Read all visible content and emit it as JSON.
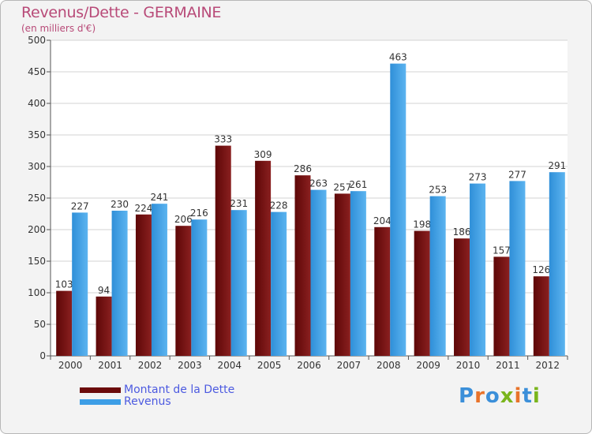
{
  "header": {
    "title": "Revenus/Dette - GERMAINE",
    "subtitle": "(en milliers d'€)"
  },
  "chart_data": {
    "type": "bar",
    "title": "Revenus/Dette - GERMAINE",
    "ylabel": "(en milliers d'€)",
    "xlabel": "",
    "ylim": [
      0,
      500
    ],
    "yticks": [
      0,
      50,
      100,
      150,
      200,
      250,
      300,
      350,
      400,
      450,
      500
    ],
    "grid": true,
    "legend_position": "bottom-left",
    "categories": [
      "2000",
      "2001",
      "2002",
      "2003",
      "2004",
      "2005",
      "2006",
      "2007",
      "2008",
      "2009",
      "2010",
      "2011",
      "2012"
    ],
    "series": [
      {
        "name": "Montant de la Dette",
        "color": "#7a0e0e",
        "values": [
          103,
          94,
          224,
          206,
          333,
          309,
          286,
          257,
          204,
          198,
          186,
          157,
          126
        ]
      },
      {
        "name": "Revenus",
        "color": "#3d9ee6",
        "values": [
          227,
          230,
          241,
          216,
          231,
          228,
          263,
          261,
          463,
          253,
          273,
          277,
          291
        ]
      }
    ]
  },
  "legend": {
    "items": [
      {
        "label": "Montant de la Dette",
        "color": "#6b0a0a"
      },
      {
        "label": "Revenus",
        "color": "#3d9ee6"
      }
    ],
    "label_color": "#4c5ae0"
  },
  "logo": {
    "letters": [
      "P",
      "r",
      "o",
      "x",
      "i",
      "t",
      "i"
    ],
    "colors": [
      "#3b8fd9",
      "#e8732a",
      "#3b8fd9",
      "#7ab51d",
      "#e8732a",
      "#3b8fd9",
      "#7ab51d"
    ]
  }
}
